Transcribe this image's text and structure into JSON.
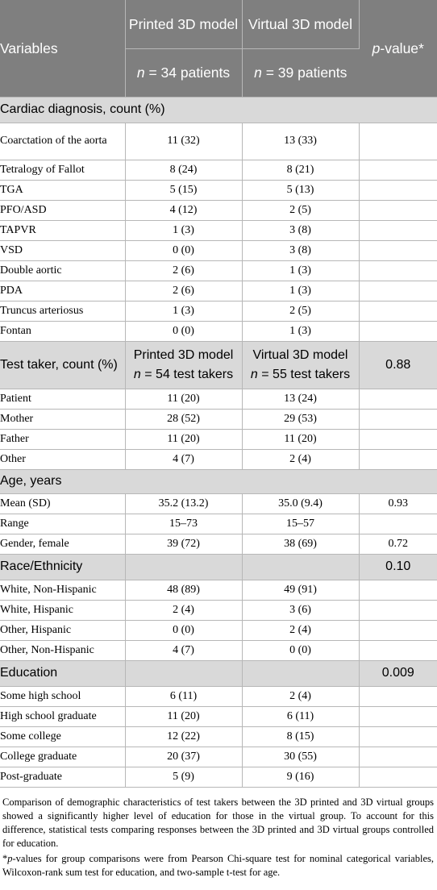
{
  "header": {
    "variables": "Variables",
    "group1": "Printed 3D model",
    "group2": "Virtual 3D model",
    "pvalue_italic": "p",
    "pvalue_rest": "-value*",
    "n_italic": "n",
    "n1_rest": " = 34 patients",
    "n2_rest": " = 39 patients"
  },
  "section_cardiac": "Cardiac diagnosis, count (%)",
  "cardiac_rows": [
    {
      "label": "Coarctation of the aorta",
      "printed": "11 (32)",
      "virtual": "13 (33)",
      "p": ""
    },
    {
      "label": "Tetralogy of Fallot",
      "printed": "8 (24)",
      "virtual": "8 (21)",
      "p": ""
    },
    {
      "label": "TGA",
      "printed": "5 (15)",
      "virtual": "5 (13)",
      "p": ""
    },
    {
      "label": "PFO/ASD",
      "printed": "4 (12)",
      "virtual": "2 (5)",
      "p": ""
    },
    {
      "label": "TAPVR",
      "printed": "1 (3)",
      "virtual": "3 (8)",
      "p": ""
    },
    {
      "label": "VSD",
      "printed": "0 (0)",
      "virtual": "3 (8)",
      "p": ""
    },
    {
      "label": "Double aortic",
      "printed": "2 (6)",
      "virtual": "1 (3)",
      "p": ""
    },
    {
      "label": "PDA",
      "printed": "2 (6)",
      "virtual": "1 (3)",
      "p": ""
    },
    {
      "label": "Truncus arteriosus",
      "printed": "1 (3)",
      "virtual": "2 (5)",
      "p": ""
    },
    {
      "label": "Fontan",
      "printed": "0 (0)",
      "virtual": "1 (3)",
      "p": ""
    }
  ],
  "test_taker": {
    "label": "Test taker, count (%)",
    "group1": "Printed 3D model",
    "group2": "Virtual 3D model",
    "n_italic": "n",
    "n1_rest": " = 54 test takers",
    "n2_rest": " = 55 test takers",
    "p": "0.88"
  },
  "taker_rows": [
    {
      "label": "Patient",
      "printed": "11 (20)",
      "virtual": "13 (24)",
      "p": ""
    },
    {
      "label": "Mother",
      "printed": "28 (52)",
      "virtual": "29 (53)",
      "p": ""
    },
    {
      "label": "Father",
      "printed": "11 (20)",
      "virtual": "11 (20)",
      "p": ""
    },
    {
      "label": "Other",
      "printed": "4 (7)",
      "virtual": "2 (4)",
      "p": ""
    }
  ],
  "section_age": "Age, years",
  "age_rows": [
    {
      "label": "Mean (SD)",
      "printed": "35.2 (13.2)",
      "virtual": "35.0 (9.4)",
      "p": "0.93"
    },
    {
      "label": "Range",
      "printed": "15–73",
      "virtual": "15–57",
      "p": ""
    },
    {
      "label": "Gender, female",
      "printed": "39 (72)",
      "virtual": "38 (69)",
      "p": "0.72"
    }
  ],
  "section_race": {
    "label": "Race/Ethnicity",
    "p": "0.10"
  },
  "race_rows": [
    {
      "label": "White, Non-Hispanic",
      "printed": "48 (89)",
      "virtual": "49 (91)",
      "p": ""
    },
    {
      "label": "White, Hispanic",
      "printed": "2 (4)",
      "virtual": "3 (6)",
      "p": ""
    },
    {
      "label": "Other, Hispanic",
      "printed": "0 (0)",
      "virtual": "2 (4)",
      "p": ""
    },
    {
      "label": "Other, Non-Hispanic",
      "printed": "4 (7)",
      "virtual": "0 (0)",
      "p": ""
    }
  ],
  "section_education": {
    "label": "Education",
    "p": "0.009"
  },
  "education_rows": [
    {
      "label": "Some high school",
      "printed": "6 (11)",
      "virtual": "2 (4)",
      "p": ""
    },
    {
      "label": "High school graduate",
      "printed": "11 (20)",
      "virtual": "6 (11)",
      "p": ""
    },
    {
      "label": "Some college",
      "printed": "12 (22)",
      "virtual": "8 (15)",
      "p": ""
    },
    {
      "label": "College graduate",
      "printed": "20 (37)",
      "virtual": "30 (55)",
      "p": ""
    },
    {
      "label": "Post-graduate",
      "printed": "5 (9)",
      "virtual": "9 (16)",
      "p": ""
    }
  ],
  "notes": {
    "note1": "Comparison of demographic characteristics of test takers between the 3D printed and 3D virtual groups showed a significantly higher level of education for those in the virtual group. To account for this difference, statistical tests comparing responses between the 3D printed and 3D virtual groups controlled for education.",
    "note2_star": "*",
    "note2_italic": "p",
    "note2_rest": "-values for group comparisons were from Pearson Chi-square test for nominal categorical variables, Wilcoxon-rank sum test for education, and two-sample t-test for age."
  }
}
